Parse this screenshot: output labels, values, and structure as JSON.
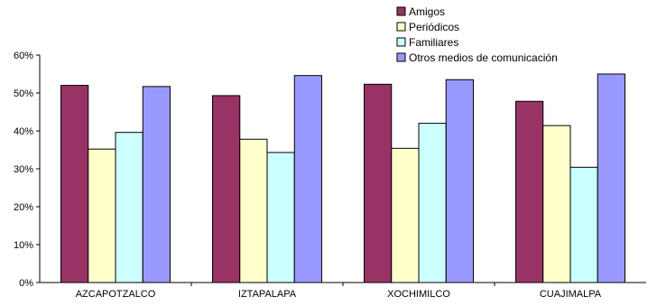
{
  "chart_data": {
    "type": "bar",
    "title": "",
    "xlabel": "",
    "ylabel": "",
    "ylim": [
      0,
      60
    ],
    "y_tick_step": 10,
    "y_tick_suffix": "%",
    "grid": false,
    "legend_position": "top-right",
    "categories": [
      "AZCAPOTZALCO",
      "IZTAPALAPA",
      "XOCHIMILCO",
      "CUAJIMALPA"
    ],
    "series": [
      {
        "name": "Amigos",
        "color": "#993366",
        "values": [
          52.0,
          49.3,
          52.3,
          47.8
        ]
      },
      {
        "name": "Periódicos",
        "color": "#FFFFCC",
        "values": [
          35.2,
          37.8,
          35.4,
          41.4
        ]
      },
      {
        "name": "Familiares",
        "color": "#CCFFFF",
        "values": [
          39.6,
          34.3,
          42.0,
          30.4
        ]
      },
      {
        "name": "Otros medios de comunicación",
        "color": "#9999FF",
        "values": [
          51.7,
          54.6,
          53.5,
          55.0
        ]
      }
    ]
  }
}
